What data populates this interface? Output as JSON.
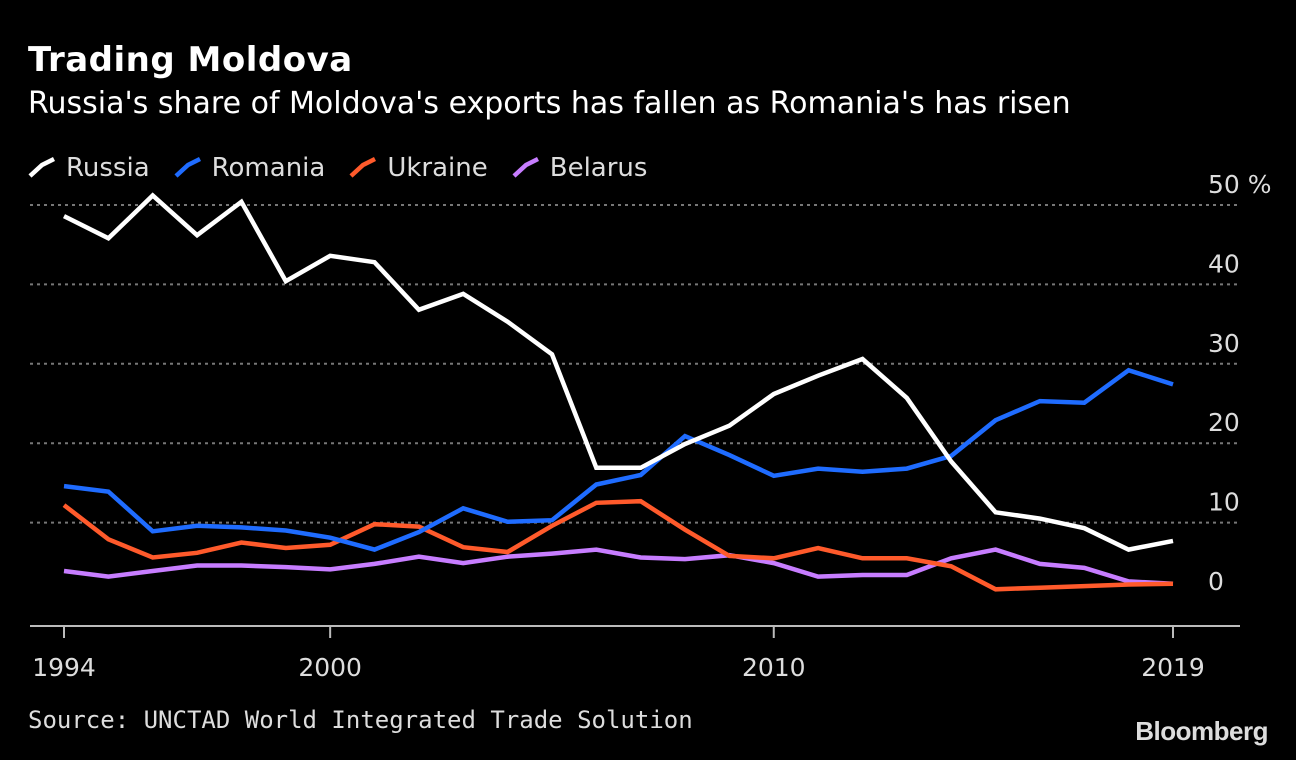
{
  "title": "Trading Moldova",
  "subtitle": "Russia's share of Moldova's exports has fallen as Romania's has risen",
  "source": "Source: UNCTAD World Integrated Trade Solution",
  "brand": "Bloomberg",
  "colors": {
    "background": "#000000",
    "russia": "#ffffff",
    "romania": "#1f6cff",
    "ukraine": "#ff5a2b",
    "belarus": "#c77dff",
    "grid": "#777777"
  },
  "chart_data": {
    "type": "line",
    "title": "Trading Moldova",
    "subtitle": "Russia's share of Moldova's exports has fallen as Romania's has risen",
    "xlabel": "",
    "ylabel": "",
    "unit": "%",
    "xlim": [
      1994,
      2019
    ],
    "ylim": [
      0,
      50
    ],
    "x_ticks": [
      1994,
      2000,
      2010,
      2019
    ],
    "y_ticks": [
      0,
      10,
      20,
      30,
      40,
      50
    ],
    "y_tick_labels": [
      "0",
      "10",
      "20",
      "30",
      "40",
      "50 %"
    ],
    "grid": "horizontal dotted",
    "legend_position": "top-left",
    "x": [
      1994,
      1995,
      1996,
      1997,
      1998,
      1999,
      2000,
      2001,
      2002,
      2003,
      2004,
      2005,
      2006,
      2007,
      2008,
      2009,
      2010,
      2011,
      2012,
      2013,
      2014,
      2015,
      2016,
      2017,
      2018,
      2019
    ],
    "series": [
      {
        "name": "Russia",
        "color": "#ffffff",
        "values": [
          48.6,
          45.8,
          51.2,
          46.2,
          50.4,
          40.4,
          43.6,
          42.8,
          36.8,
          38.8,
          35.3,
          31.2,
          16.9,
          16.9,
          19.9,
          22.2,
          26.2,
          28.5,
          30.6,
          25.7,
          17.7,
          11.3,
          10.5,
          9.3,
          6.6,
          7.7
        ]
      },
      {
        "name": "Romania",
        "color": "#1f6cff",
        "values": [
          14.6,
          13.9,
          8.9,
          9.6,
          9.4,
          9.0,
          8.1,
          6.6,
          8.8,
          11.8,
          10.1,
          10.3,
          14.8,
          16.0,
          20.9,
          18.5,
          15.9,
          16.8,
          16.4,
          16.8,
          18.4,
          22.9,
          25.3,
          25.1,
          29.2,
          27.4
        ]
      },
      {
        "name": "Ukraine",
        "color": "#ff5a2b",
        "values": [
          12.2,
          7.9,
          5.6,
          6.2,
          7.5,
          6.8,
          7.2,
          9.8,
          9.5,
          6.9,
          6.3,
          9.6,
          12.5,
          12.7,
          9.1,
          5.8,
          5.5,
          6.8,
          5.5,
          5.5,
          4.5,
          1.6,
          1.8,
          2.0,
          2.2,
          2.3
        ]
      },
      {
        "name": "Belarus",
        "color": "#c77dff",
        "values": [
          3.9,
          3.2,
          3.9,
          4.6,
          4.6,
          4.4,
          4.1,
          4.8,
          5.7,
          4.9,
          5.7,
          6.1,
          6.6,
          5.6,
          5.4,
          5.9,
          4.9,
          3.2,
          3.4,
          3.4,
          5.5,
          6.6,
          4.8,
          4.3,
          2.6,
          2.3
        ]
      }
    ]
  }
}
